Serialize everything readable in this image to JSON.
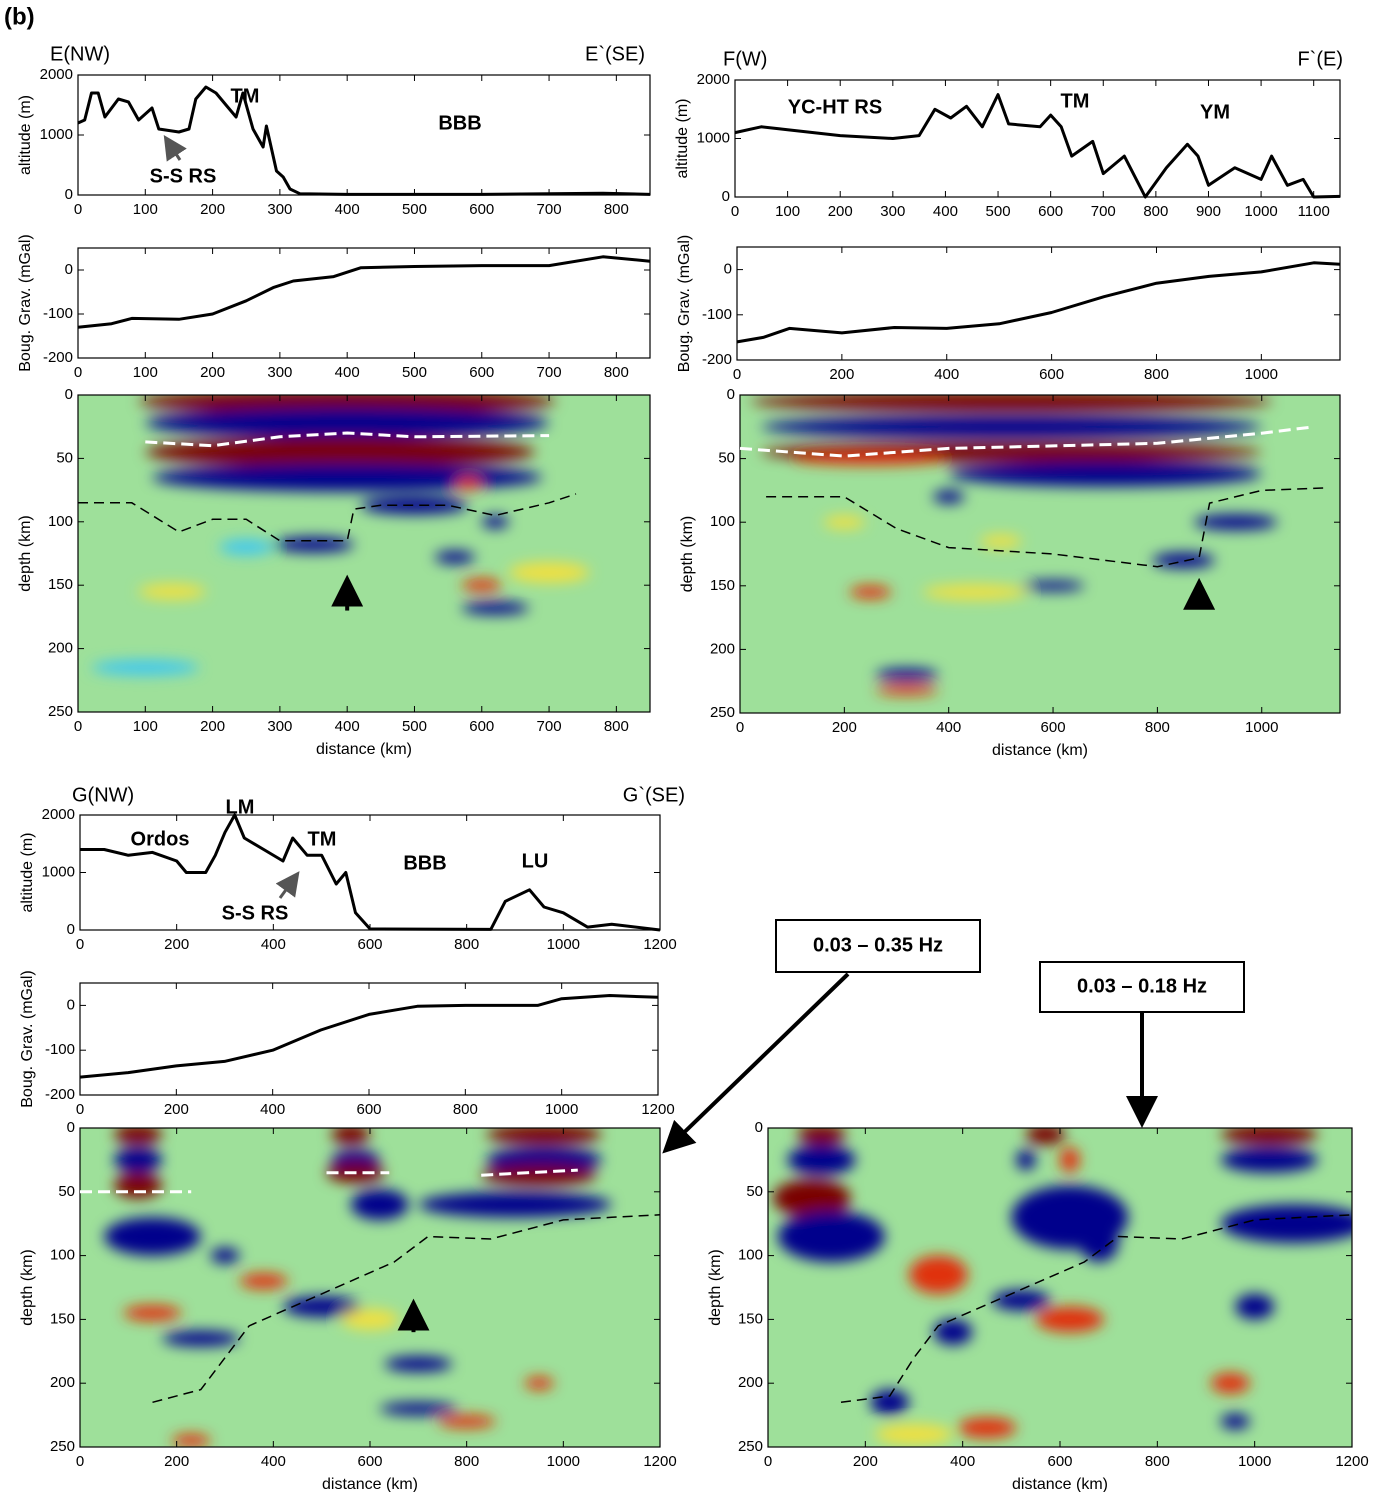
{
  "panel_label": "(b)",
  "annotations": [
    "0.03 – 0.35 Hz",
    "0.03 – 0.18 Hz"
  ],
  "chart_data": [
    {
      "type": "line",
      "left_label": "E(NW)",
      "right_label": "E`(SE)",
      "ylabel": "altitude (m)",
      "annotations": [
        "TM",
        "BBB",
        "S-S RS"
      ],
      "xlim": [
        0,
        850
      ],
      "xticks": [
        0,
        100,
        200,
        300,
        400,
        500,
        600,
        700,
        800
      ],
      "ylim": [
        0,
        2000
      ],
      "yticks": [
        0,
        1000,
        2000
      ],
      "color": "#000000",
      "x": [
        0,
        10,
        20,
        30,
        40,
        60,
        75,
        90,
        110,
        120,
        150,
        165,
        175,
        190,
        205,
        220,
        235,
        245,
        260,
        275,
        280,
        295,
        305,
        315,
        330,
        400,
        600,
        780,
        850
      ],
      "values": [
        1200,
        1250,
        1700,
        1700,
        1300,
        1600,
        1550,
        1250,
        1450,
        1100,
        1050,
        1100,
        1600,
        1800,
        1700,
        1500,
        1300,
        1700,
        1100,
        800,
        1150,
        400,
        300,
        100,
        20,
        10,
        10,
        30,
        10
      ]
    },
    {
      "type": "line",
      "ylabel": "Boug. Grav. (mGal)",
      "xlim": [
        0,
        850
      ],
      "xticks": [
        0,
        100,
        200,
        300,
        400,
        500,
        600,
        700,
        800
      ],
      "ylim": [
        -200,
        50
      ],
      "yticks": [
        -200,
        -100,
        0
      ],
      "color": "#000000",
      "x": [
        0,
        50,
        80,
        150,
        200,
        250,
        290,
        320,
        380,
        420,
        500,
        600,
        700,
        780,
        850
      ],
      "values": [
        -130,
        -122,
        -110,
        -112,
        -100,
        -70,
        -40,
        -25,
        -15,
        5,
        8,
        10,
        10,
        30,
        20
      ]
    },
    {
      "type": "image",
      "xlabel": "distance (km)",
      "ylabel": "depth (km)",
      "xlim": [
        0,
        850
      ],
      "xticks": [
        0,
        100,
        200,
        300,
        400,
        500,
        600,
        700,
        800
      ],
      "ylim": [
        250,
        0
      ],
      "yticks": [
        0,
        50,
        100,
        150,
        200,
        250
      ],
      "series": [
        {
          "color": "#ffffff",
          "x": [
            100,
            200,
            300,
            400,
            500,
            700
          ],
          "values": [
            37,
            40,
            33,
            30,
            33,
            32
          ]
        },
        {
          "color": "#000000",
          "x": [
            0,
            80,
            150,
            200,
            250,
            300,
            400,
            410,
            450,
            550,
            620,
            700,
            740
          ],
          "values": [
            85,
            85,
            108,
            98,
            98,
            115,
            115,
            90,
            87,
            87,
            95,
            85,
            78
          ]
        }
      ]
    },
    {
      "type": "line",
      "left_label": "F(W)",
      "right_label": "F`(E)",
      "ylabel": "altitude (m)",
      "annotations": [
        "YC-HT RS",
        "TM",
        "YM"
      ],
      "xlim": [
        0,
        1150
      ],
      "xticks": [
        0,
        100,
        200,
        300,
        400,
        500,
        600,
        700,
        800,
        900,
        1000,
        1100
      ],
      "ylim": [
        0,
        2000
      ],
      "yticks": [
        0,
        1000,
        2000
      ],
      "color": "#000000",
      "x": [
        0,
        50,
        100,
        200,
        300,
        350,
        380,
        410,
        440,
        470,
        500,
        520,
        580,
        600,
        620,
        640,
        680,
        700,
        740,
        780,
        820,
        860,
        880,
        900,
        950,
        1000,
        1020,
        1050,
        1080,
        1100,
        1150
      ],
      "values": [
        1100,
        1200,
        1150,
        1050,
        1000,
        1050,
        1500,
        1350,
        1550,
        1200,
        1750,
        1250,
        1200,
        1400,
        1200,
        700,
        950,
        400,
        700,
        0,
        500,
        900,
        700,
        200,
        500,
        300,
        700,
        200,
        300,
        0,
        10
      ]
    },
    {
      "type": "line",
      "ylabel": "Boug. Grav. (mGal)",
      "xlim": [
        0,
        1150
      ],
      "xticks": [
        0,
        200,
        400,
        600,
        800,
        1000
      ],
      "ylim": [
        -200,
        50
      ],
      "yticks": [
        -200,
        -100,
        0
      ],
      "color": "#000000",
      "x": [
        0,
        50,
        100,
        200,
        300,
        400,
        500,
        600,
        700,
        800,
        900,
        1000,
        1100,
        1150
      ],
      "values": [
        -160,
        -150,
        -130,
        -140,
        -128,
        -130,
        -120,
        -95,
        -60,
        -30,
        -15,
        -5,
        15,
        12
      ]
    },
    {
      "type": "image",
      "xlabel": "distance (km)",
      "ylabel": "depth (km)",
      "xlim": [
        0,
        1150
      ],
      "xticks": [
        0,
        200,
        400,
        600,
        800,
        1000
      ],
      "ylim": [
        250,
        0
      ],
      "yticks": [
        0,
        50,
        100,
        150,
        200,
        250
      ],
      "series": [
        {
          "color": "#ffffff",
          "x": [
            0,
            200,
            400,
            600,
            800,
            1000,
            1100
          ],
          "values": [
            42,
            48,
            42,
            40,
            38,
            30,
            25
          ]
        },
        {
          "color": "#000000",
          "x": [
            50,
            200,
            300,
            400,
            600,
            800,
            880,
            900,
            1000,
            1120
          ],
          "values": [
            80,
            80,
            105,
            120,
            125,
            135,
            128,
            85,
            75,
            73
          ]
        }
      ]
    },
    {
      "type": "line",
      "left_label": "G(NW)",
      "right_label": "G`(SE)",
      "ylabel": "altitude (m)",
      "annotations": [
        "LM",
        "Ordos",
        "TM",
        "BBB",
        "LU",
        "S-S RS"
      ],
      "xlim": [
        0,
        1200
      ],
      "xticks": [
        0,
        200,
        400,
        600,
        800,
        1000,
        1200
      ],
      "ylim": [
        0,
        2000
      ],
      "yticks": [
        0,
        1000,
        2000
      ],
      "color": "#000000",
      "x": [
        0,
        50,
        100,
        150,
        200,
        220,
        260,
        280,
        300,
        320,
        340,
        380,
        420,
        440,
        470,
        500,
        530,
        550,
        570,
        600,
        850,
        880,
        930,
        960,
        1000,
        1050,
        1100,
        1200
      ],
      "values": [
        1400,
        1400,
        1300,
        1350,
        1200,
        1000,
        1000,
        1300,
        1700,
        2000,
        1600,
        1400,
        1200,
        1600,
        1300,
        1300,
        800,
        1000,
        300,
        20,
        10,
        500,
        700,
        400,
        300,
        50,
        100,
        0
      ]
    },
    {
      "type": "line",
      "ylabel": "Boug. Grav. (mGal)",
      "xlim": [
        0,
        1200
      ],
      "xticks": [
        0,
        200,
        400,
        600,
        800,
        1000,
        1200
      ],
      "ylim": [
        -200,
        50
      ],
      "yticks": [
        -200,
        -100,
        0
      ],
      "color": "#000000",
      "x": [
        0,
        100,
        200,
        300,
        400,
        500,
        600,
        700,
        800,
        950,
        1000,
        1100,
        1200
      ],
      "values": [
        -160,
        -150,
        -135,
        -125,
        -100,
        -55,
        -20,
        -2,
        0,
        0,
        15,
        22,
        18
      ]
    },
    {
      "type": "image",
      "xlabel": "distance (km)",
      "ylabel": "depth (km)",
      "xlim": [
        0,
        1200
      ],
      "xticks": [
        0,
        200,
        400,
        600,
        800,
        1000,
        1200
      ],
      "ylim": [
        250,
        0
      ],
      "yticks": [
        0,
        50,
        100,
        150,
        200,
        250
      ],
      "series": [
        {
          "color": "#ffffff",
          "x": [
            0,
            230,
            null,
            510,
            640,
            null,
            830,
            1030
          ],
          "values": [
            50,
            50,
            null,
            35,
            35,
            null,
            37,
            33
          ]
        },
        {
          "color": "#000000",
          "x": [
            150,
            250,
            350,
            500,
            650,
            720,
            850,
            1000,
            1100,
            1200
          ],
          "values": [
            215,
            205,
            155,
            130,
            105,
            85,
            87,
            72,
            70,
            68
          ]
        }
      ]
    },
    {
      "type": "image",
      "xlabel": "distance (km)",
      "ylabel": "depth (km)",
      "xlim": [
        0,
        1200
      ],
      "xticks": [
        0,
        200,
        400,
        600,
        800,
        1000,
        1200
      ],
      "ylim": [
        250,
        0
      ],
      "yticks": [
        0,
        50,
        100,
        150,
        200,
        250
      ],
      "series": [
        {
          "color": "#000000",
          "x": [
            150,
            250,
            300,
            350,
            500,
            650,
            720,
            850,
            1000,
            1100,
            1200
          ],
          "values": [
            215,
            210,
            180,
            155,
            130,
            105,
            85,
            87,
            72,
            70,
            68
          ]
        }
      ]
    }
  ]
}
